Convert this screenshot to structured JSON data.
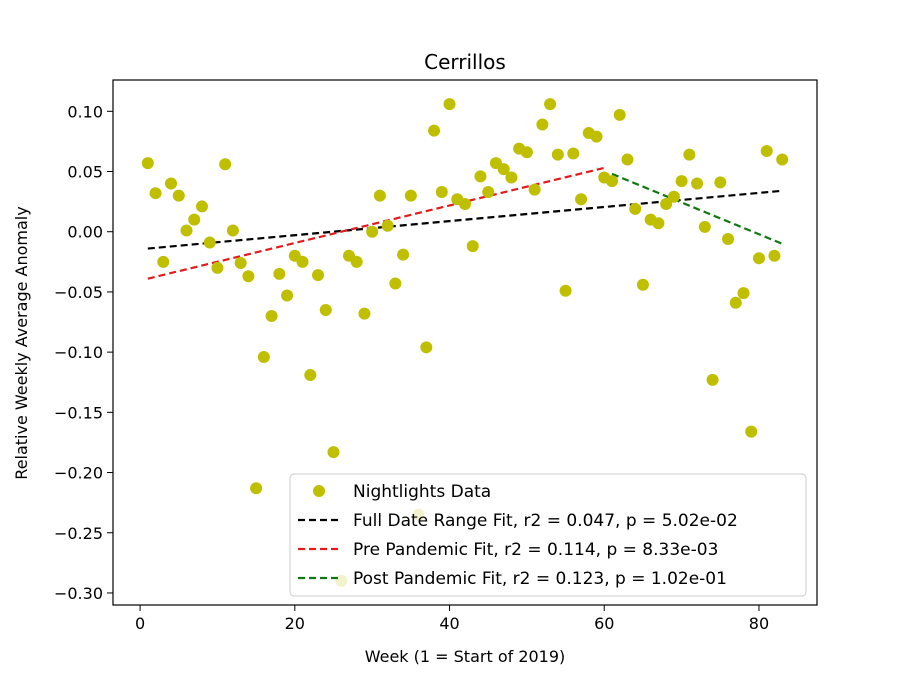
{
  "chart_data": {
    "type": "scatter",
    "title": "Cerrillos",
    "xlabel": "Week (1 = Start of 2019)",
    "ylabel": "Relative Weekly Average Anomaly",
    "xlim": [
      -3.5,
      87.5
    ],
    "ylim": [
      -0.31,
      0.126
    ],
    "xticks": [
      0,
      20,
      40,
      60,
      80
    ],
    "yticks": [
      -0.3,
      -0.25,
      -0.2,
      -0.15,
      -0.1,
      -0.05,
      0.0,
      0.05,
      0.1
    ],
    "xtick_labels": [
      "0",
      "20",
      "40",
      "60",
      "80"
    ],
    "ytick_labels": [
      "−0.30",
      "−0.25",
      "−0.20",
      "−0.15",
      "−0.10",
      "−0.05",
      "0.00",
      "0.05",
      "0.10"
    ],
    "grid": false,
    "legend_position": "lower-right",
    "colors": {
      "points": "#bfbf00",
      "full_fit": "#000000",
      "pre_fit": "#e31a1c",
      "post_fit": "#117711"
    },
    "series": [
      {
        "name": "Nightlights Data",
        "kind": "points",
        "x": [
          1,
          2,
          3,
          4,
          5,
          6,
          7,
          8,
          9,
          10,
          11,
          12,
          13,
          14,
          15,
          16,
          17,
          18,
          19,
          20,
          21,
          22,
          23,
          24,
          25,
          26,
          27,
          28,
          29,
          30,
          31,
          32,
          33,
          34,
          35,
          36,
          37,
          38,
          39,
          40,
          41,
          42,
          43,
          44,
          45,
          46,
          47,
          48,
          49,
          50,
          51,
          52,
          53,
          54,
          55,
          56,
          57,
          58,
          59,
          60,
          61,
          62,
          63,
          64,
          65,
          66,
          67,
          68,
          69,
          70,
          71,
          72,
          73,
          74,
          75,
          76,
          77,
          78,
          79,
          80,
          81,
          82,
          83
        ],
        "y": [
          0.057,
          0.032,
          -0.025,
          0.04,
          0.03,
          0.001,
          0.01,
          0.021,
          -0.009,
          -0.03,
          0.056,
          0.001,
          -0.026,
          -0.037,
          -0.213,
          -0.104,
          -0.07,
          -0.035,
          -0.053,
          -0.02,
          -0.025,
          -0.119,
          -0.036,
          -0.065,
          -0.183,
          -0.29,
          -0.02,
          -0.025,
          -0.068,
          0.0,
          0.03,
          0.005,
          -0.043,
          -0.019,
          0.03,
          -0.235,
          -0.096,
          0.084,
          0.033,
          0.106,
          0.027,
          0.023,
          -0.012,
          0.046,
          0.033,
          0.057,
          0.052,
          0.045,
          0.069,
          0.066,
          0.035,
          0.089,
          0.106,
          0.064,
          -0.049,
          0.065,
          0.027,
          0.082,
          0.079,
          0.045,
          0.042,
          0.097,
          0.06,
          0.019,
          -0.044,
          0.01,
          0.007,
          0.023,
          0.029,
          0.042,
          0.064,
          0.04,
          0.004,
          -0.123,
          0.041,
          -0.006,
          -0.059,
          -0.051,
          -0.166,
          -0.022,
          0.067,
          -0.02,
          0.06
        ]
      },
      {
        "name": "Full Date Range Fit, r2 = 0.047, p = 5.02e-02",
        "kind": "line",
        "x": [
          1,
          83
        ],
        "y": [
          -0.014,
          0.034
        ]
      },
      {
        "name": "Pre Pandemic Fit, r2 = 0.114, p = 8.33e-03",
        "kind": "line",
        "x": [
          1,
          60
        ],
        "y": [
          -0.039,
          0.053
        ]
      },
      {
        "name": "Post Pandemic Fit, r2 = 0.123, p = 1.02e-01",
        "kind": "line",
        "x": [
          61,
          83
        ],
        "y": [
          0.048,
          -0.01
        ]
      }
    ]
  }
}
